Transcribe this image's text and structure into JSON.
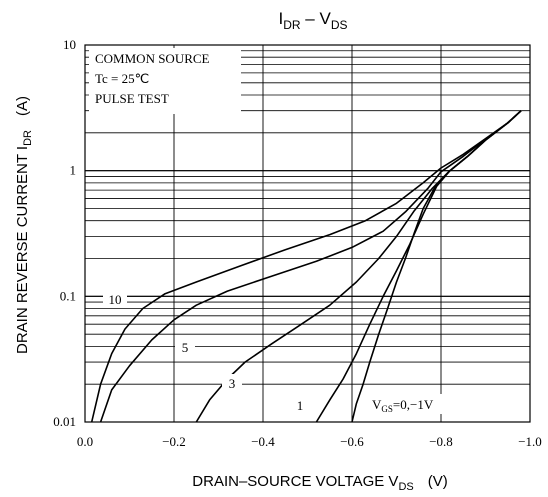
{
  "chart_data": {
    "type": "line",
    "title_main": "I",
    "title_main_sub": "DR",
    "title_dash": " – V",
    "title_dash_sub": "DS",
    "ylabel_main": "DRAIN REVERSE CURRENT  I",
    "ylabel_sub": "DR",
    "ylabel_unit": "(A)",
    "xlabel_main": "DRAIN–SOURCE VOLTAGE  V",
    "xlabel_sub": "DS",
    "xlabel_unit": "(V)",
    "x_ticks": [
      "0.0",
      "−0.2",
      "−0.4",
      "−0.6",
      "−0.8",
      "−1.0"
    ],
    "y_ticks": [
      "0.01",
      "0.1",
      "1",
      "10"
    ],
    "xlim": [
      0,
      -1.0
    ],
    "ylim": [
      0.01,
      10
    ],
    "y_scale": "log",
    "grid": true,
    "conditions": [
      "COMMON SOURCE",
      "Tc = 25℃",
      "PULSE TEST"
    ],
    "vgs_label_prefix": "V",
    "vgs_label_sub": "GS",
    "vgs_label_suffix": "=0,−1V",
    "series": [
      {
        "name": "10",
        "points": [
          [
            -0.015,
            0.01
          ],
          [
            -0.035,
            0.02
          ],
          [
            -0.06,
            0.035
          ],
          [
            -0.09,
            0.055
          ],
          [
            -0.13,
            0.08
          ],
          [
            -0.18,
            0.105
          ],
          [
            -0.25,
            0.13
          ],
          [
            -0.35,
            0.175
          ],
          [
            -0.45,
            0.235
          ],
          [
            -0.55,
            0.31
          ],
          [
            -0.63,
            0.4
          ],
          [
            -0.7,
            0.55
          ],
          [
            -0.76,
            0.8
          ],
          [
            -0.8,
            1.05
          ],
          [
            -0.85,
            1.35
          ],
          [
            -0.9,
            1.8
          ],
          [
            -0.95,
            2.4
          ],
          [
            -0.98,
            3.0
          ]
        ]
      },
      {
        "name": "5",
        "points": [
          [
            -0.035,
            0.01
          ],
          [
            -0.06,
            0.018
          ],
          [
            -0.1,
            0.028
          ],
          [
            -0.15,
            0.045
          ],
          [
            -0.2,
            0.065
          ],
          [
            -0.25,
            0.085
          ],
          [
            -0.32,
            0.11
          ],
          [
            -0.42,
            0.145
          ],
          [
            -0.52,
            0.19
          ],
          [
            -0.6,
            0.245
          ],
          [
            -0.67,
            0.33
          ],
          [
            -0.72,
            0.47
          ],
          [
            -0.77,
            0.72
          ],
          [
            -0.8,
            0.98
          ],
          [
            -0.85,
            1.3
          ],
          [
            -0.9,
            1.78
          ],
          [
            -0.95,
            2.4
          ],
          [
            -0.98,
            3.0
          ]
        ]
      },
      {
        "name": "3",
        "points": [
          [
            -0.25,
            0.01
          ],
          [
            -0.28,
            0.015
          ],
          [
            -0.32,
            0.022
          ],
          [
            -0.36,
            0.03
          ],
          [
            -0.42,
            0.042
          ],
          [
            -0.48,
            0.058
          ],
          [
            -0.55,
            0.085
          ],
          [
            -0.61,
            0.13
          ],
          [
            -0.66,
            0.2
          ],
          [
            -0.7,
            0.3
          ],
          [
            -0.74,
            0.48
          ],
          [
            -0.78,
            0.72
          ],
          [
            -0.82,
            1.0
          ],
          [
            -0.86,
            1.3
          ],
          [
            -0.9,
            1.75
          ],
          [
            -0.95,
            2.4
          ],
          [
            -0.98,
            3.0
          ]
        ]
      },
      {
        "name": "1",
        "points": [
          [
            -0.52,
            0.01
          ],
          [
            -0.55,
            0.015
          ],
          [
            -0.58,
            0.022
          ],
          [
            -0.61,
            0.035
          ],
          [
            -0.64,
            0.06
          ],
          [
            -0.67,
            0.1
          ],
          [
            -0.7,
            0.16
          ],
          [
            -0.73,
            0.26
          ],
          [
            -0.76,
            0.45
          ],
          [
            -0.79,
            0.75
          ],
          [
            -0.82,
            1.0
          ],
          [
            -0.86,
            1.3
          ],
          [
            -0.9,
            1.75
          ],
          [
            -0.95,
            2.4
          ],
          [
            -0.98,
            3.0
          ]
        ]
      },
      {
        "name": "0,−1",
        "points": [
          [
            -0.6,
            0.01
          ],
          [
            -0.61,
            0.014
          ],
          [
            -0.625,
            0.02
          ],
          [
            -0.64,
            0.03
          ],
          [
            -0.66,
            0.05
          ],
          [
            -0.68,
            0.08
          ],
          [
            -0.7,
            0.13
          ],
          [
            -0.72,
            0.2
          ],
          [
            -0.74,
            0.32
          ],
          [
            -0.76,
            0.5
          ],
          [
            -0.79,
            0.78
          ],
          [
            -0.82,
            1.0
          ],
          [
            -0.86,
            1.3
          ],
          [
            -0.9,
            1.75
          ],
          [
            -0.95,
            2.4
          ],
          [
            -0.98,
            3.0
          ]
        ]
      }
    ]
  }
}
